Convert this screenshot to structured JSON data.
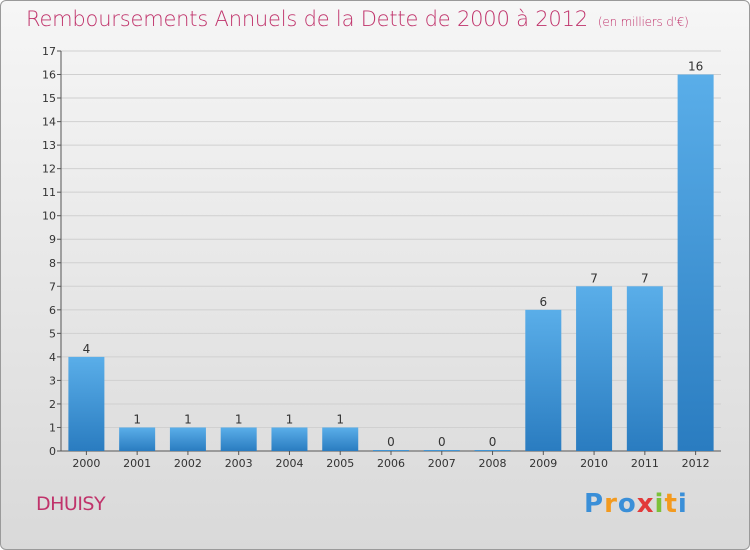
{
  "header": {
    "title": "Remboursements Annuels de la Dette de 2000 à 2012",
    "unit": "(en milliers d'€)"
  },
  "commune": "DHUISY",
  "logo": {
    "text": "Proxiti",
    "letters": [
      "P",
      "r",
      "o",
      "x",
      "i",
      "t",
      "i"
    ],
    "colors": [
      "#3a8fd8",
      "#f39a1e",
      "#3a8fd8",
      "#e23a3a",
      "#7cc13a",
      "#f39a1e",
      "#3a8fd8"
    ]
  },
  "colors": {
    "bar_top": "#5aaee9",
    "bar_bottom": "#2a7cc0",
    "title": "#c0336b"
  },
  "chart_data": {
    "type": "bar",
    "title": "Remboursements Annuels de la Dette de 2000 à 2012",
    "ylabel": "en milliers d'€",
    "categories": [
      "2000",
      "2001",
      "2002",
      "2003",
      "2004",
      "2005",
      "2006",
      "2007",
      "2008",
      "2009",
      "2010",
      "2011",
      "2012"
    ],
    "values": [
      4,
      1,
      1,
      1,
      1,
      1,
      0,
      0,
      0,
      6,
      7,
      7,
      16
    ],
    "ylim": [
      0,
      17
    ],
    "yticks": [
      0,
      1,
      2,
      3,
      4,
      5,
      6,
      7,
      8,
      9,
      10,
      11,
      12,
      13,
      14,
      15,
      16,
      17
    ],
    "grid": true
  }
}
